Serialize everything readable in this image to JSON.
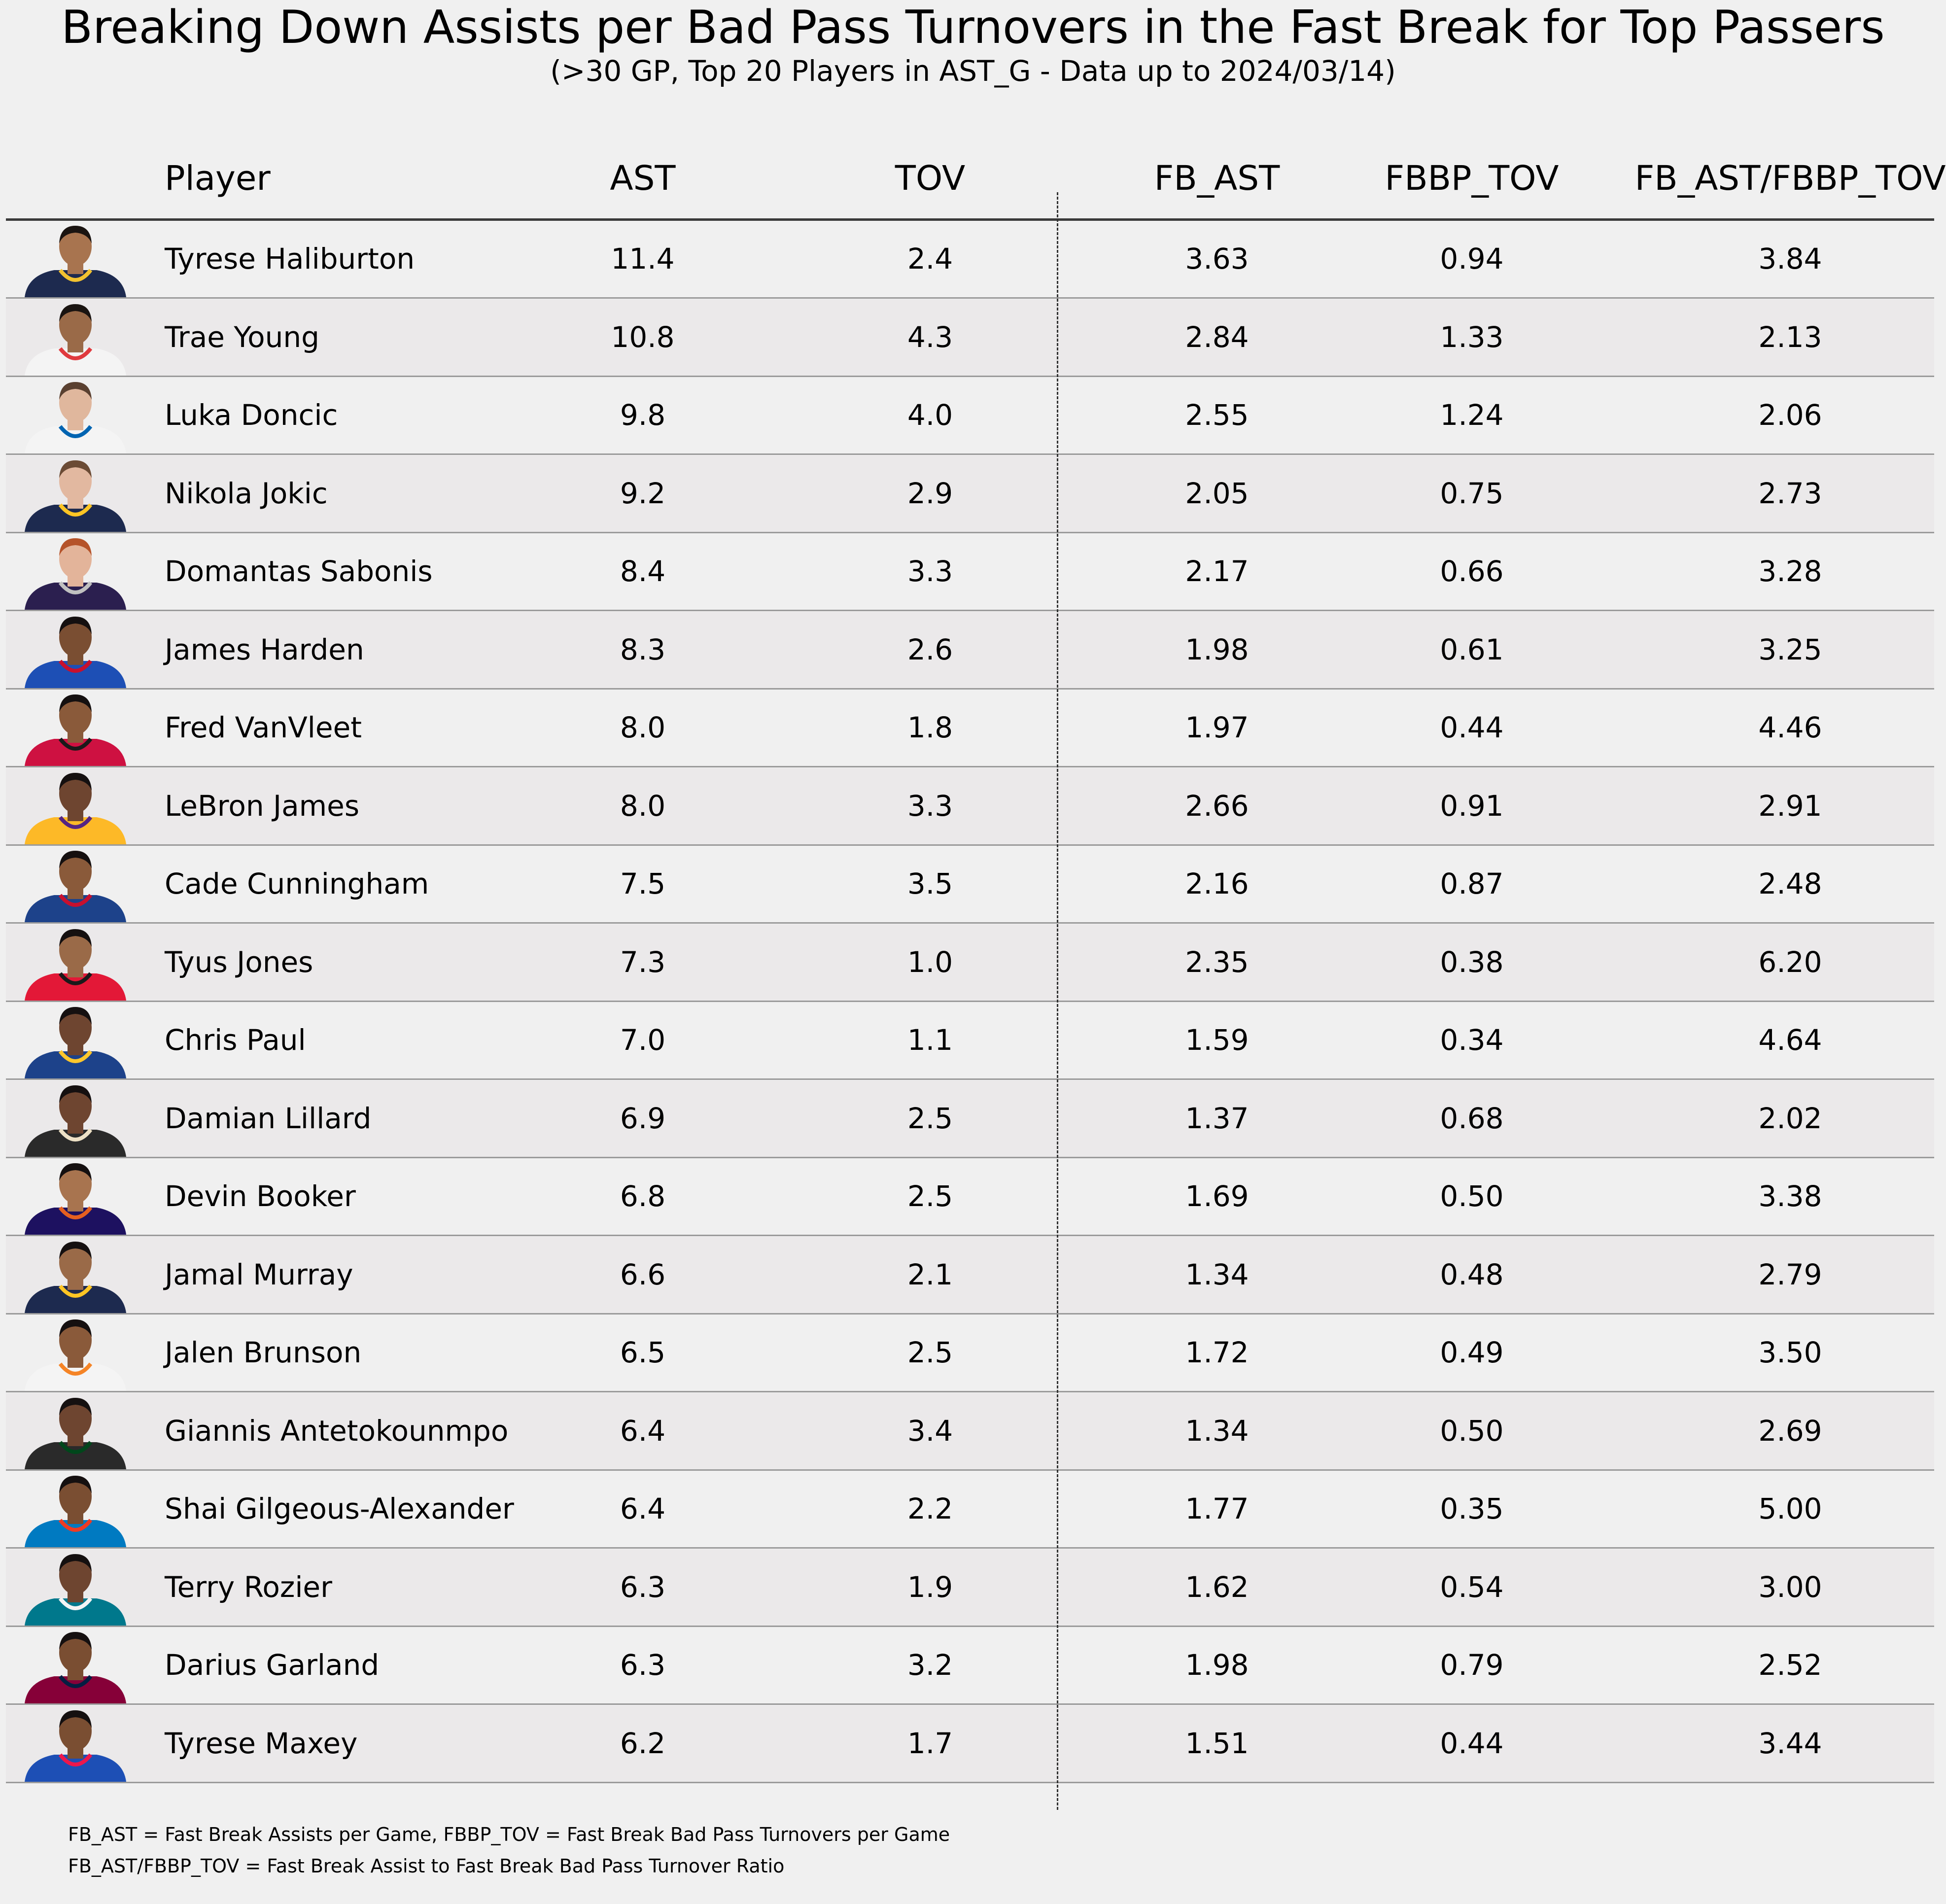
{
  "title": "Breaking Down Assists per Bad Pass Turnovers in the Fast Break for Top Passers",
  "subtitle": "(>30 GP, Top 20 Players in AST_G - Data up to 2024/03/14)",
  "headers": {
    "player": "Player",
    "ast": "AST",
    "tov": "TOV",
    "fb_ast": "FB_AST",
    "fbbp_tov": "FBBP_TOV",
    "ratio": "FB_AST/FBBP_TOV"
  },
  "footnotes": [
    "FB_AST = Fast Break Assists per Game, FBBP_TOV = Fast Break Bad Pass Turnovers per Game",
    "FB_AST/FBBP_TOV = Fast Break Assist to Fast Break Bad Pass Turnover Ratio"
  ],
  "chart_data": {
    "type": "table",
    "columns": [
      "Player",
      "AST",
      "TOV",
      "FB_AST",
      "FBBP_TOV",
      "FB_AST/FBBP_TOV"
    ],
    "rows": [
      {
        "player": "Tyrese Haliburton",
        "ast": "11.4",
        "tov": "2.4",
        "fb_ast": "3.63",
        "fbbp_tov": "0.94",
        "ratio": "3.84",
        "jersey": "#1d2a4f",
        "trim": "#f2c230",
        "skin": "#a8744f",
        "hair": "#1a1411"
      },
      {
        "player": "Trae Young",
        "ast": "10.8",
        "tov": "4.3",
        "fb_ast": "2.84",
        "fbbp_tov": "1.33",
        "ratio": "2.13",
        "jersey": "#f4f4f4",
        "trim": "#e03a3e",
        "skin": "#9a6a48",
        "hair": "#1a1411"
      },
      {
        "player": "Luka Doncic",
        "ast": "9.8",
        "tov": "4.0",
        "fb_ast": "2.55",
        "fbbp_tov": "1.24",
        "ratio": "2.06",
        "jersey": "#f4f4f4",
        "trim": "#0064b1",
        "skin": "#e0b79d",
        "hair": "#5a4030"
      },
      {
        "player": "Nikola Jokic",
        "ast": "9.2",
        "tov": "2.9",
        "fb_ast": "2.05",
        "fbbp_tov": "0.75",
        "ratio": "2.73",
        "jersey": "#1d2a4f",
        "trim": "#fec524",
        "skin": "#e2b8a0",
        "hair": "#6b4b35"
      },
      {
        "player": "Domantas Sabonis",
        "ast": "8.4",
        "tov": "3.3",
        "fb_ast": "2.17",
        "fbbp_tov": "0.66",
        "ratio": "3.28",
        "jersey": "#2b1f4f",
        "trim": "#c0c0c0",
        "skin": "#e3b49a",
        "hair": "#b5532a"
      },
      {
        "player": "James Harden",
        "ast": "8.3",
        "tov": "2.6",
        "fb_ast": "1.98",
        "fbbp_tov": "0.61",
        "ratio": "3.25",
        "jersey": "#1d4fb5",
        "trim": "#c8102e",
        "skin": "#7a4e32",
        "hair": "#151010"
      },
      {
        "player": "Fred VanVleet",
        "ast": "8.0",
        "tov": "1.8",
        "fb_ast": "1.97",
        "fbbp_tov": "0.44",
        "ratio": "4.46",
        "jersey": "#ce1141",
        "trim": "#1a1a1a",
        "skin": "#8a5a3a",
        "hair": "#151010"
      },
      {
        "player": "LeBron James",
        "ast": "8.0",
        "tov": "3.3",
        "fb_ast": "2.66",
        "fbbp_tov": "0.91",
        "ratio": "2.91",
        "jersey": "#fdb927",
        "trim": "#552583",
        "skin": "#6e4530",
        "hair": "#151010"
      },
      {
        "player": "Cade Cunningham",
        "ast": "7.5",
        "tov": "3.5",
        "fb_ast": "2.16",
        "fbbp_tov": "0.87",
        "ratio": "2.48",
        "jersey": "#1d428a",
        "trim": "#c8102e",
        "skin": "#8a5a3a",
        "hair": "#151010"
      },
      {
        "player": "Tyus Jones",
        "ast": "7.3",
        "tov": "1.0",
        "fb_ast": "2.35",
        "fbbp_tov": "0.38",
        "ratio": "6.20",
        "jersey": "#e31837",
        "trim": "#1a1a1a",
        "skin": "#9a6a48",
        "hair": "#151010"
      },
      {
        "player": "Chris Paul",
        "ast": "7.0",
        "tov": "1.1",
        "fb_ast": "1.59",
        "fbbp_tov": "0.34",
        "ratio": "4.64",
        "jersey": "#1d428a",
        "trim": "#ffc72c",
        "skin": "#6e4530",
        "hair": "#151010"
      },
      {
        "player": "Damian Lillard",
        "ast": "6.9",
        "tov": "2.5",
        "fb_ast": "1.37",
        "fbbp_tov": "0.68",
        "ratio": "2.02",
        "jersey": "#2a2a2a",
        "trim": "#eee1c6",
        "skin": "#6e4530",
        "hair": "#151010"
      },
      {
        "player": "Devin Booker",
        "ast": "6.8",
        "tov": "2.5",
        "fb_ast": "1.69",
        "fbbp_tov": "0.50",
        "ratio": "3.38",
        "jersey": "#1d1160",
        "trim": "#e56020",
        "skin": "#a8744f",
        "hair": "#151010"
      },
      {
        "player": "Jamal Murray",
        "ast": "6.6",
        "tov": "2.1",
        "fb_ast": "1.34",
        "fbbp_tov": "0.48",
        "ratio": "2.79",
        "jersey": "#1d2a4f",
        "trim": "#fec524",
        "skin": "#9a6a48",
        "hair": "#151010"
      },
      {
        "player": "Jalen Brunson",
        "ast": "6.5",
        "tov": "2.5",
        "fb_ast": "1.72",
        "fbbp_tov": "0.49",
        "ratio": "3.50",
        "jersey": "#f4f4f4",
        "trim": "#f58426",
        "skin": "#8a5a3a",
        "hair": "#151010"
      },
      {
        "player": "Giannis Antetokounmpo",
        "ast": "6.4",
        "tov": "3.4",
        "fb_ast": "1.34",
        "fbbp_tov": "0.50",
        "ratio": "2.69",
        "jersey": "#2a2a2a",
        "trim": "#00471b",
        "skin": "#6e4530",
        "hair": "#151010"
      },
      {
        "player": "Shai Gilgeous-Alexander",
        "ast": "6.4",
        "tov": "2.2",
        "fb_ast": "1.77",
        "fbbp_tov": "0.35",
        "ratio": "5.00",
        "jersey": "#007ac1",
        "trim": "#ef3b24",
        "skin": "#7a4e32",
        "hair": "#151010"
      },
      {
        "player": "Terry Rozier",
        "ast": "6.3",
        "tov": "1.9",
        "fb_ast": "1.62",
        "fbbp_tov": "0.54",
        "ratio": "3.00",
        "jersey": "#00788c",
        "trim": "#f4f4f4",
        "skin": "#6e4530",
        "hair": "#151010"
      },
      {
        "player": "Darius Garland",
        "ast": "6.3",
        "tov": "3.2",
        "fb_ast": "1.98",
        "fbbp_tov": "0.79",
        "ratio": "2.52",
        "jersey": "#860038",
        "trim": "#041e42",
        "skin": "#7a4e32",
        "hair": "#151010"
      },
      {
        "player": "Tyrese Maxey",
        "ast": "6.2",
        "tov": "1.7",
        "fb_ast": "1.51",
        "fbbp_tov": "0.44",
        "ratio": "3.44",
        "jersey": "#1d4fb5",
        "trim": "#ed174c",
        "skin": "#7a4e32",
        "hair": "#151010"
      }
    ]
  }
}
